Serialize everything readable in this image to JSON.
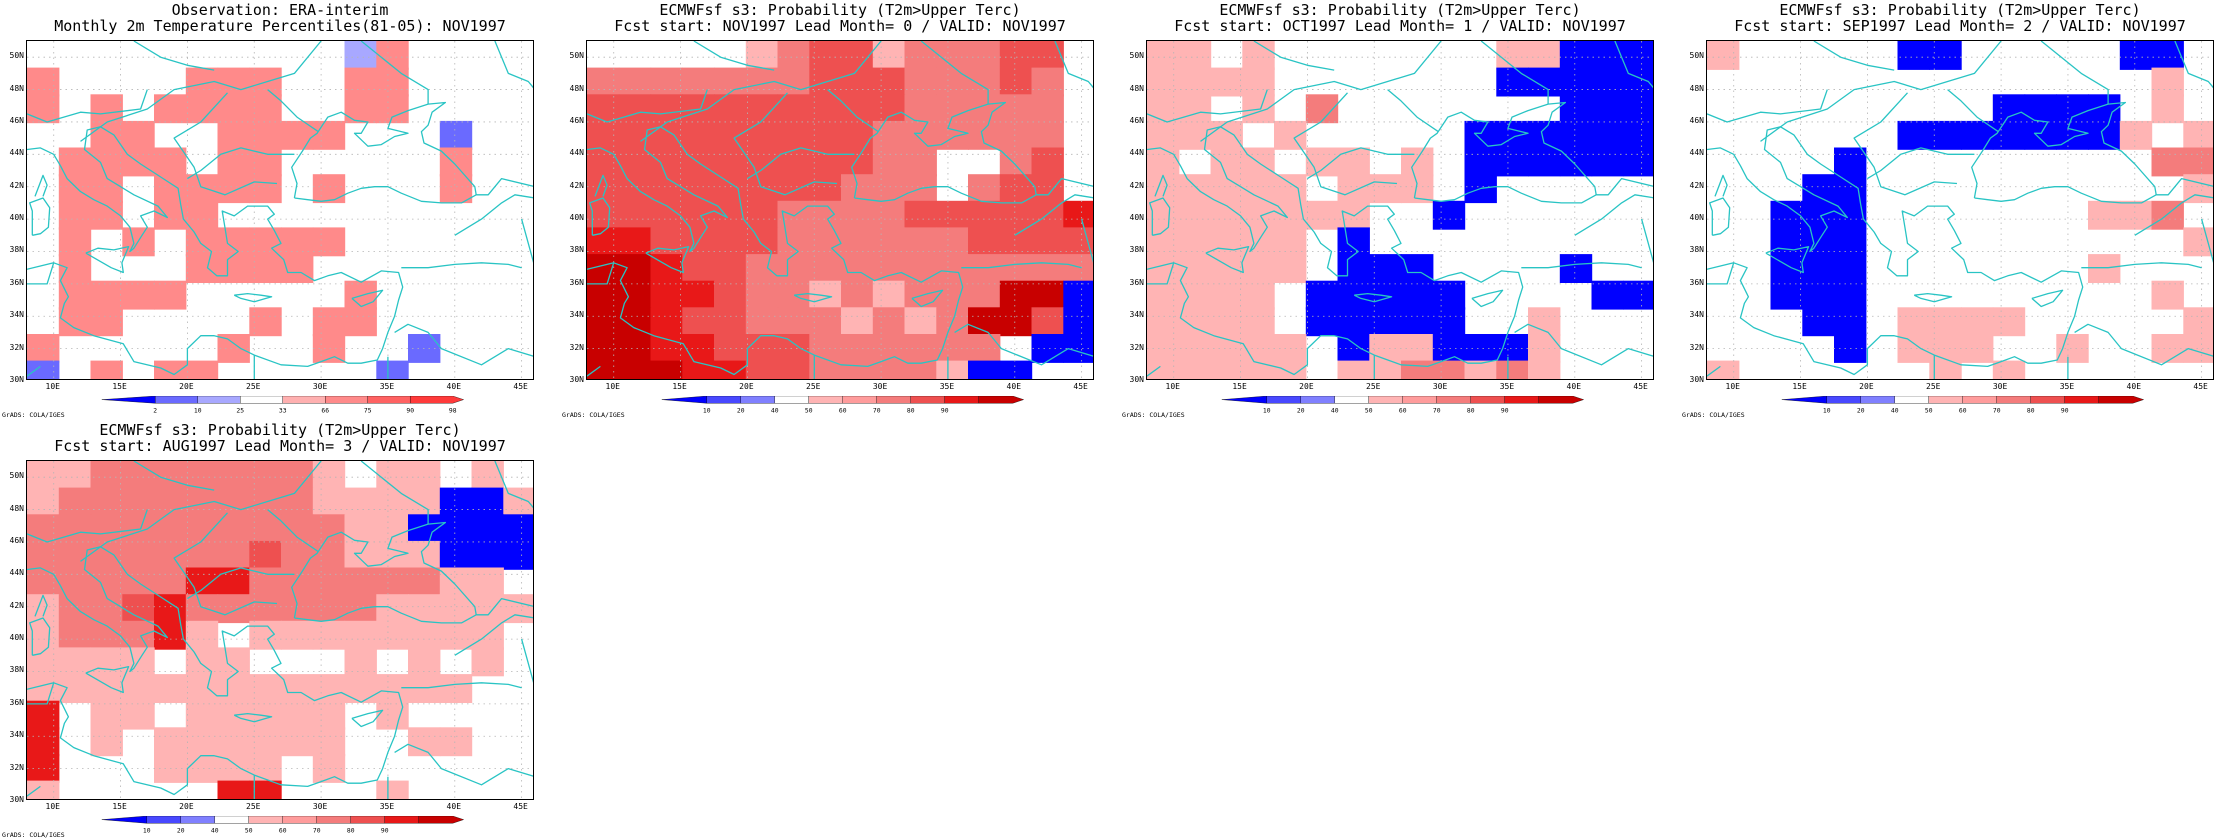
{
  "colors": {
    "coast": "#29c4c4",
    "grid": "#b5b5b5",
    "scale_obs": [
      "#0000ff",
      "#6a6aff",
      "#a8a8ff",
      "#ffffff",
      "#ffb0b0",
      "#ff8a8a",
      "#ff6262",
      "#ff3a3a"
    ],
    "scale_prob": [
      "#0000ff",
      "#4848ff",
      "#8080ff",
      "#ffffff",
      "#ffb4b4",
      "#ff9c9c",
      "#f47c7c",
      "#ee5050",
      "#e81818",
      "#c80000"
    ]
  },
  "panels": [
    {
      "id": "obs",
      "title1": "Observation: ERA-interim",
      "title2": "Monthly 2m Temperature Percentiles(81-05): NOV1997",
      "colorbar": {
        "type": "obs",
        "labels": [
          "2",
          "10",
          "25",
          "33",
          "66",
          "75",
          "90",
          "98"
        ]
      },
      "grads": "GrADS: COLA/IGES",
      "field": [
        "..........14..",
        "4....444..44..",
        "4.4.4444..44..",
        "..44..4444...2",
        ".4444.44.....4",
        ".44.4444.4...4",
        ".44.44.........",
        ".4.4.44444....",
        ".4...4444.....",
        ".4444.....4...",
        ".44....4.44..",
        "4.....4..4..2",
        "2.4.44.....2"
      ]
    },
    {
      "id": "lm0",
      "title1": "ECMWFsf s3: Probability (T2m>Upper Terc)",
      "title2": "Fcst start: NOV1997  Lead Month= 0 / VALID: NOV1997",
      "colorbar": {
        "type": "prob",
        "labels": [
          "10",
          "20",
          "40",
          "50",
          "60",
          "70",
          "80",
          "90"
        ]
      },
      "grads": "GrADS: COLA/IGES",
      "field": [
        ".....4566455566",
        "555555566655565",
        "666666666655555",
        "666666666555555",
        "66666666655..56",
        "66666666555.566",
        "6666665555666667",
        "7766665555556666",
        "8876655555555555",
        "88776554545558800",
        "88766555454588600",
        "8877666555555.00",
        "88877665555400"
      ]
    },
    {
      "id": "lm1",
      "title1": "ECMWFsf s3: Probability (T2m>Upper Terc)",
      "title2": "Fcst start: OCT1997  Lead Month= 1 / VALID: NOV1997",
      "colorbar": {
        "type": "prob",
        "labels": [
          "10",
          "20",
          "40",
          "50",
          "60",
          "70",
          "80",
          "90"
        ]
      },
      "grads": "GrADS: COLA/IGES",
      "field": [
        "44.4.......44000",
        "4444.......00000",
        "44.4.5.......000",
        "444.4.....000000",
        "4.44.44.4.000000",
        "44444.444.0.....",
        "4444444..0......",
        "44444.0..........",
        "44444.000....0.",
        "4444.00000....0000",
        "4444.00000..4...",
        "44444.0440004....",
        "44444.4455454...."
      ]
    },
    {
      "id": "lm2",
      "title1": "ECMWFsf s3: Probability (T2m>Upper Terc)",
      "title2": "Fcst start: SEP1997  Lead Month= 2 / VALID: NOV1997",
      "colorbar": {
        "type": "prob",
        "labels": [
          "10",
          "20",
          "40",
          "50",
          "60",
          "70",
          "80",
          "90"
        ]
      },
      "grads": "GrADS: COLA/IGES",
      "field": [
        "4.....00.....00.",
        "..............4.",
        ".........0000.4.",
        "......00000004.4",
        "....0.........555",
        "...00..........445",
        "..000.......445.",
        "..000..........4",
        "..000.......4...",
        "..000.........4.",
        "...00.4444.....4",
        "....0.444..4..44",
        "4......4.4......"
      ]
    },
    {
      "id": "lm3",
      "title1": "ECMWFsf s3: Probability (T2m>Upper Terc)",
      "title2": "Fcst start: AUG1997  Lead Month= 3 / VALID: NOV1997",
      "colorbar": {
        "type": "prob",
        "labels": [
          "10",
          "20",
          "40",
          "50",
          "60",
          "70",
          "80",
          "90"
        ]
      },
      "grads": "GrADS: COLA/IGES",
      "field": [
        "4455555554.44.4",
        "4555555554444004",
        "55555555554400000",
        "55555556554440000",
        "555557755555544.",
        "4556755555544444",
        "455574.44444444.",
        "4444.44...4.4.4.",
        "44444444444444.",
        "7.44.44444.4...",
        "7.4.444444..44.",
        "7...4444.4.....",
        "4.....77...4..."
      ]
    }
  ],
  "axes": {
    "y_labels": [
      "50N",
      "48N",
      "46N",
      "44N",
      "42N",
      "40N",
      "38N",
      "36N",
      "34N",
      "32N",
      "30N"
    ],
    "x_labels": [
      "10E",
      "15E",
      "20E",
      "25E",
      "30E",
      "35E",
      "40E",
      "45E"
    ],
    "lat_range": [
      30,
      51
    ],
    "lon_range": [
      8,
      46
    ]
  }
}
